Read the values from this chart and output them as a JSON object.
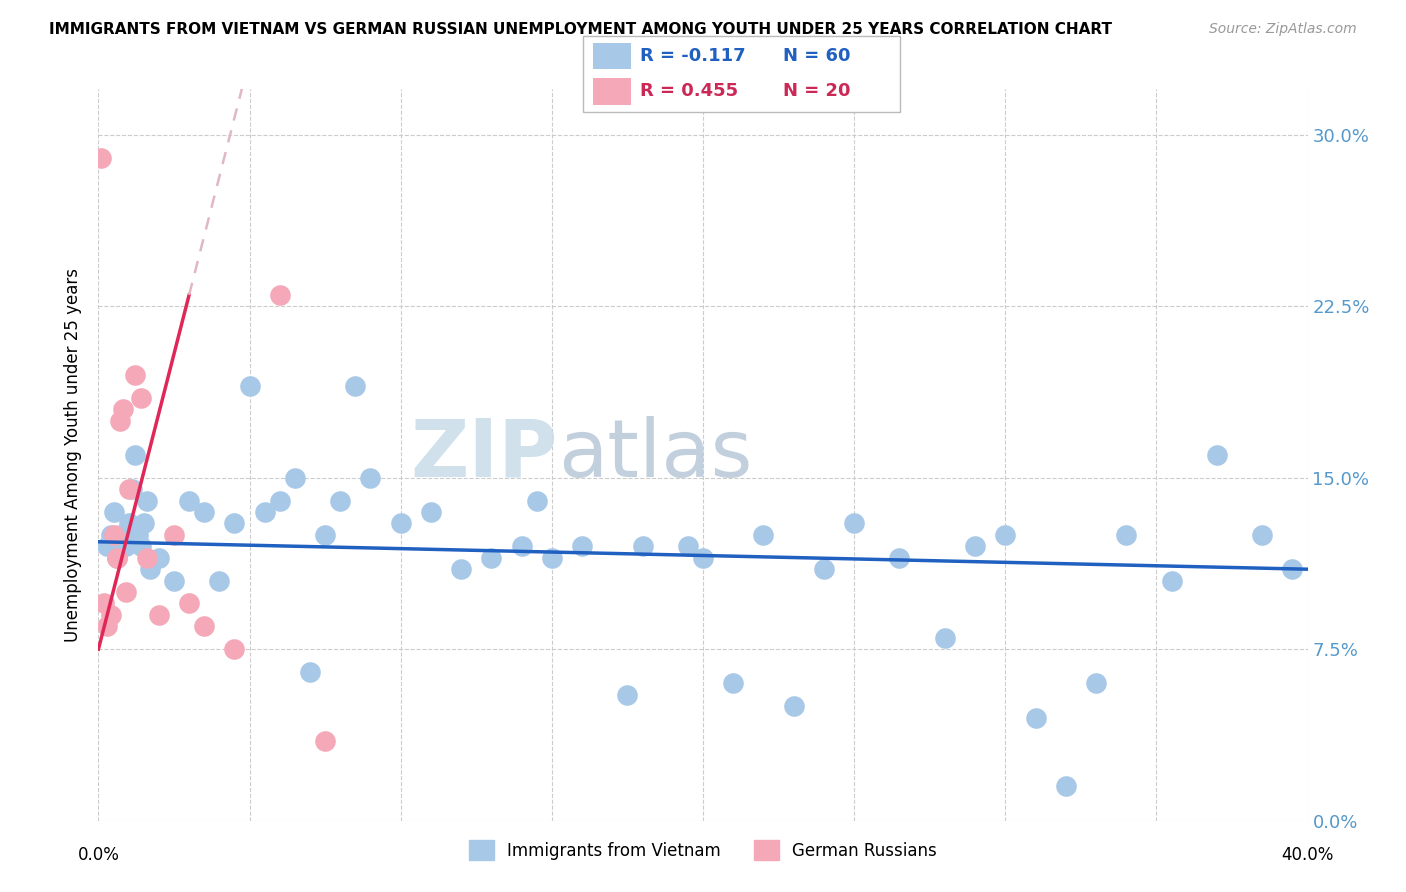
{
  "title": "IMMIGRANTS FROM VIETNAM VS GERMAN RUSSIAN UNEMPLOYMENT AMONG YOUTH UNDER 25 YEARS CORRELATION CHART",
  "source": "Source: ZipAtlas.com",
  "ylabel": "Unemployment Among Youth under 25 years",
  "ytick_labels": [
    "0.0%",
    "7.5%",
    "15.0%",
    "22.5%",
    "30.0%"
  ],
  "ytick_values": [
    0.0,
    7.5,
    15.0,
    22.5,
    30.0
  ],
  "xlim": [
    0.0,
    40.0
  ],
  "ylim": [
    0.0,
    32.0
  ],
  "blue_color": "#a8c8e8",
  "pink_color": "#f4a8b8",
  "trendline_blue_color": "#2060c0",
  "trendline_pink_solid_color": "#e02858",
  "trendline_pink_dash_color": "#e0b8c4",
  "watermark_left": "ZIP",
  "watermark_right": "atlas",
  "label_blue": "Immigrants from Vietnam",
  "label_pink": "German Russians",
  "blue_x": [
    0.3,
    0.4,
    0.5,
    0.5,
    0.6,
    0.7,
    0.8,
    0.9,
    1.0,
    1.1,
    1.2,
    1.3,
    1.4,
    1.5,
    1.6,
    1.7,
    2.0,
    2.5,
    3.0,
    3.5,
    4.0,
    4.5,
    5.0,
    5.5,
    6.0,
    6.5,
    7.0,
    7.5,
    8.0,
    8.5,
    9.0,
    10.0,
    11.0,
    12.0,
    13.0,
    14.0,
    14.5,
    15.0,
    16.0,
    17.5,
    18.0,
    19.5,
    20.0,
    21.0,
    22.0,
    23.0,
    24.0,
    25.0,
    26.5,
    28.0,
    29.0,
    30.0,
    31.0,
    32.0,
    33.0,
    34.0,
    35.5,
    37.0,
    38.5,
    39.5
  ],
  "blue_y": [
    12.0,
    12.5,
    12.0,
    13.5,
    11.5,
    12.5,
    12.0,
    12.0,
    13.0,
    14.5,
    16.0,
    12.5,
    12.0,
    13.0,
    14.0,
    11.0,
    11.5,
    10.5,
    14.0,
    13.5,
    10.5,
    13.0,
    19.0,
    13.5,
    14.0,
    15.0,
    6.5,
    12.5,
    14.0,
    19.0,
    15.0,
    13.0,
    13.5,
    11.0,
    11.5,
    12.0,
    14.0,
    11.5,
    12.0,
    5.5,
    12.0,
    12.0,
    11.5,
    6.0,
    12.5,
    5.0,
    11.0,
    13.0,
    11.5,
    8.0,
    12.0,
    12.5,
    4.5,
    1.5,
    6.0,
    12.5,
    10.5,
    16.0,
    12.5,
    11.0
  ],
  "pink_x": [
    0.1,
    0.2,
    0.3,
    0.4,
    0.5,
    0.6,
    0.7,
    0.8,
    0.9,
    1.0,
    1.2,
    1.4,
    1.6,
    2.0,
    2.5,
    3.0,
    3.5,
    4.5,
    6.0,
    7.5
  ],
  "pink_y": [
    29.0,
    9.5,
    8.5,
    9.0,
    12.5,
    11.5,
    17.5,
    18.0,
    10.0,
    14.5,
    19.5,
    18.5,
    11.5,
    9.0,
    12.5,
    9.5,
    8.5,
    7.5,
    23.0,
    3.5
  ],
  "blue_trend_x0": 0.0,
  "blue_trend_x1": 40.0,
  "blue_trend_y0": 12.2,
  "blue_trend_y1": 11.0,
  "pink_trend_solid_x0": 0.0,
  "pink_trend_solid_x1": 3.0,
  "pink_trend_y_at_0": 7.5,
  "pink_trend_y_at_3": 23.0,
  "pink_trend_dash_x0": 3.0,
  "pink_trend_dash_x1": 8.5,
  "figsize": [
    14.06,
    8.92
  ],
  "dpi": 100
}
